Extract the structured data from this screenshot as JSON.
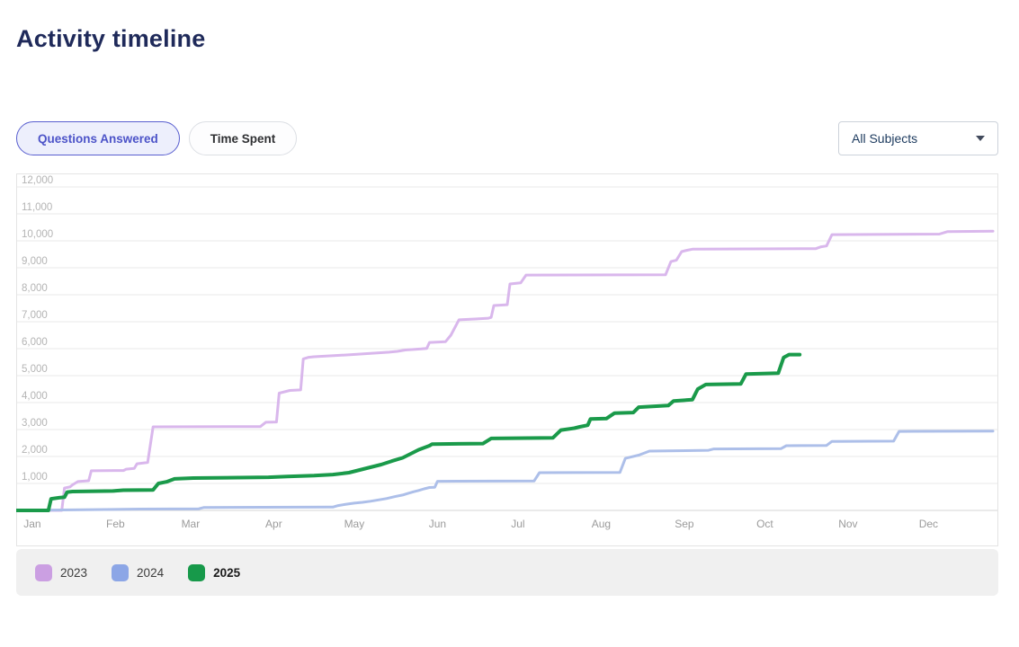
{
  "page": {
    "title": "Activity timeline"
  },
  "toolbar": {
    "tabs": [
      {
        "label": "Questions Answered",
        "active": true
      },
      {
        "label": "Time Spent",
        "active": false
      }
    ],
    "subject_filter": {
      "value": "All Subjects",
      "icon": "chevron-down-icon"
    }
  },
  "chart_data": {
    "type": "line",
    "title": "Activity timeline",
    "xlabel": "",
    "ylabel": "",
    "grid": true,
    "x_axis": {
      "domain": [
        -6,
        360
      ],
      "ticks": [
        {
          "label": "Jan",
          "day": 0
        },
        {
          "label": "Feb",
          "day": 31
        },
        {
          "label": "Mar",
          "day": 59
        },
        {
          "label": "Apr",
          "day": 90
        },
        {
          "label": "May",
          "day": 120
        },
        {
          "label": "Jun",
          "day": 151
        },
        {
          "label": "Jul",
          "day": 181
        },
        {
          "label": "Aug",
          "day": 212
        },
        {
          "label": "Sep",
          "day": 243
        },
        {
          "label": "Oct",
          "day": 273
        },
        {
          "label": "Nov",
          "day": 304
        },
        {
          "label": "Dec",
          "day": 334
        }
      ]
    },
    "y_axis": {
      "min": 0,
      "max": 12500,
      "tick_interval": 1000,
      "ticks": [
        {
          "value": 1000,
          "label": "1,000"
        },
        {
          "value": 2000,
          "label": "2,000"
        },
        {
          "value": 3000,
          "label": "3,000"
        },
        {
          "value": 4000,
          "label": "4,000"
        },
        {
          "value": 5000,
          "label": "5,000"
        },
        {
          "value": 6000,
          "label": "6,000"
        },
        {
          "value": 7000,
          "label": "7,000"
        },
        {
          "value": 8000,
          "label": "8,000"
        },
        {
          "value": 9000,
          "label": "9,000"
        },
        {
          "value": 10000,
          "label": "10,000"
        },
        {
          "value": 11000,
          "label": "11,000"
        },
        {
          "value": 12000,
          "label": "12,000"
        }
      ]
    },
    "legend": {
      "position": "bottom",
      "entries": [
        {
          "label": "2023",
          "color": "#cb9fe2",
          "bold": false
        },
        {
          "label": "2024",
          "color": "#8ca6e6",
          "bold": false
        },
        {
          "label": "2025",
          "color": "#17994a",
          "bold": true
        }
      ]
    },
    "series": [
      {
        "name": "2023",
        "color": "#d9b7ec",
        "width": 3,
        "points": [
          [
            -6,
            0
          ],
          [
            11,
            0
          ],
          [
            12,
            830
          ],
          [
            14,
            870
          ],
          [
            15,
            950
          ],
          [
            17,
            1070
          ],
          [
            21,
            1100
          ],
          [
            22,
            1470
          ],
          [
            34,
            1480
          ],
          [
            35,
            1530
          ],
          [
            38,
            1560
          ],
          [
            39,
            1730
          ],
          [
            43,
            1780
          ],
          [
            45,
            3100
          ],
          [
            85,
            3110
          ],
          [
            87,
            3270
          ],
          [
            91,
            3280
          ],
          [
            92,
            4350
          ],
          [
            94,
            4400
          ],
          [
            96,
            4450
          ],
          [
            100,
            4470
          ],
          [
            101,
            5620
          ],
          [
            103,
            5680
          ],
          [
            105,
            5700
          ],
          [
            121,
            5790
          ],
          [
            133,
            5870
          ],
          [
            136,
            5900
          ],
          [
            139,
            5950
          ],
          [
            145,
            5990
          ],
          [
            147,
            6010
          ],
          [
            148,
            6230
          ],
          [
            154,
            6260
          ],
          [
            156,
            6500
          ],
          [
            159,
            7070
          ],
          [
            165,
            7100
          ],
          [
            170,
            7130
          ],
          [
            171,
            7160
          ],
          [
            172,
            7600
          ],
          [
            177,
            7630
          ],
          [
            178,
            8400
          ],
          [
            182,
            8440
          ],
          [
            184,
            8730
          ],
          [
            236,
            8740
          ],
          [
            238,
            9230
          ],
          [
            240,
            9280
          ],
          [
            242,
            9600
          ],
          [
            244,
            9650
          ],
          [
            246,
            9690
          ],
          [
            292,
            9710
          ],
          [
            294,
            9780
          ],
          [
            296,
            9810
          ],
          [
            298,
            10230
          ],
          [
            338,
            10250
          ],
          [
            341,
            10340
          ],
          [
            358,
            10360
          ]
        ]
      },
      {
        "name": "2024",
        "color": "#adbfe9",
        "width": 3,
        "points": [
          [
            -6,
            0
          ],
          [
            15,
            20
          ],
          [
            40,
            50
          ],
          [
            62,
            60
          ],
          [
            64,
            110
          ],
          [
            112,
            125
          ],
          [
            114,
            180
          ],
          [
            117,
            230
          ],
          [
            120,
            270
          ],
          [
            123,
            300
          ],
          [
            126,
            340
          ],
          [
            129,
            390
          ],
          [
            132,
            440
          ],
          [
            135,
            510
          ],
          [
            138,
            570
          ],
          [
            140,
            630
          ],
          [
            142,
            690
          ],
          [
            144,
            740
          ],
          [
            146,
            800
          ],
          [
            148,
            850
          ],
          [
            150,
            860
          ],
          [
            151,
            1080
          ],
          [
            187,
            1090
          ],
          [
            189,
            1400
          ],
          [
            219,
            1410
          ],
          [
            221,
            1930
          ],
          [
            226,
            2050
          ],
          [
            230,
            2200
          ],
          [
            252,
            2230
          ],
          [
            254,
            2280
          ],
          [
            279,
            2290
          ],
          [
            281,
            2400
          ],
          [
            296,
            2410
          ],
          [
            298,
            2560
          ],
          [
            321,
            2570
          ],
          [
            323,
            2930
          ],
          [
            358,
            2940
          ]
        ]
      },
      {
        "name": "2025",
        "color": "#1a9a4a",
        "width": 4,
        "points": [
          [
            -6,
            0
          ],
          [
            6,
            0
          ],
          [
            7,
            430
          ],
          [
            10,
            470
          ],
          [
            12,
            490
          ],
          [
            13,
            680
          ],
          [
            15,
            700
          ],
          [
            30,
            720
          ],
          [
            34,
            750
          ],
          [
            45,
            760
          ],
          [
            47,
            1000
          ],
          [
            50,
            1060
          ],
          [
            53,
            1170
          ],
          [
            60,
            1200
          ],
          [
            88,
            1230
          ],
          [
            95,
            1260
          ],
          [
            105,
            1290
          ],
          [
            112,
            1330
          ],
          [
            118,
            1400
          ],
          [
            122,
            1500
          ],
          [
            126,
            1600
          ],
          [
            130,
            1700
          ],
          [
            134,
            1830
          ],
          [
            138,
            1950
          ],
          [
            141,
            2100
          ],
          [
            144,
            2250
          ],
          [
            148,
            2400
          ],
          [
            149,
            2460
          ],
          [
            168,
            2480
          ],
          [
            171,
            2670
          ],
          [
            194,
            2690
          ],
          [
            197,
            2980
          ],
          [
            202,
            3050
          ],
          [
            204,
            3100
          ],
          [
            207,
            3160
          ],
          [
            208,
            3390
          ],
          [
            214,
            3410
          ],
          [
            217,
            3610
          ],
          [
            224,
            3630
          ],
          [
            226,
            3830
          ],
          [
            237,
            3890
          ],
          [
            239,
            4060
          ],
          [
            246,
            4110
          ],
          [
            248,
            4500
          ],
          [
            251,
            4670
          ],
          [
            264,
            4690
          ],
          [
            266,
            5060
          ],
          [
            278,
            5090
          ],
          [
            280,
            5670
          ],
          [
            282,
            5780
          ],
          [
            286,
            5780
          ]
        ]
      }
    ]
  }
}
